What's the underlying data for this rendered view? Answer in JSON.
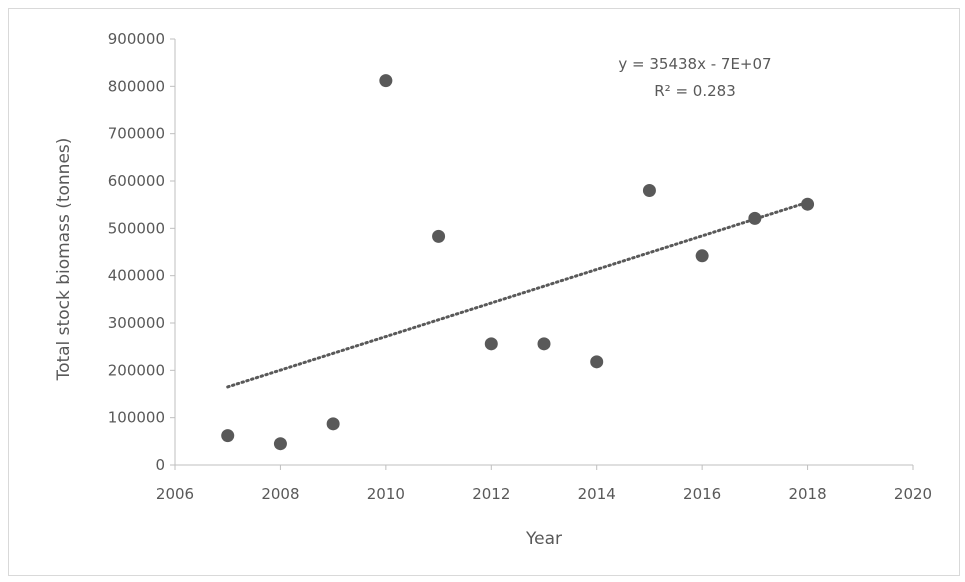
{
  "chart_data": {
    "type": "scatter",
    "title": "",
    "xlabel": "Year",
    "ylabel": "Total stock biomass (tonnes)",
    "xlim": [
      2006,
      2020
    ],
    "ylim": [
      0,
      900000
    ],
    "x_ticks": [
      2006,
      2008,
      2010,
      2012,
      2014,
      2016,
      2018,
      2020
    ],
    "y_ticks": [
      0,
      100000,
      200000,
      300000,
      400000,
      500000,
      600000,
      700000,
      800000,
      900000
    ],
    "x_tick_labels": [
      "2006",
      "2008",
      "2010",
      "2012",
      "2014",
      "2016",
      "2018",
      "2020"
    ],
    "y_tick_labels": [
      "0",
      "100000",
      "200000",
      "300000",
      "400000",
      "500000",
      "600000",
      "700000",
      "800000",
      "900000"
    ],
    "grid": false,
    "series": [
      {
        "x": [
          2007,
          2008,
          2009,
          2010,
          2011,
          2012,
          2013,
          2014,
          2015,
          2016,
          2017,
          2018
        ],
        "y": [
          62000,
          45000,
          87000,
          812000,
          483000,
          256000,
          256000,
          218000,
          580000,
          442000,
          521000,
          551000
        ],
        "color": "#595959"
      }
    ],
    "trendline": {
      "type": "linear",
      "x_range": [
        2007,
        2018
      ],
      "y_range": [
        165000,
        555000
      ],
      "color": "#595959",
      "style": "dotted"
    },
    "annotations": {
      "equation": "y = 35438x - 7E+07",
      "r_squared": "R² = 0.283"
    }
  }
}
